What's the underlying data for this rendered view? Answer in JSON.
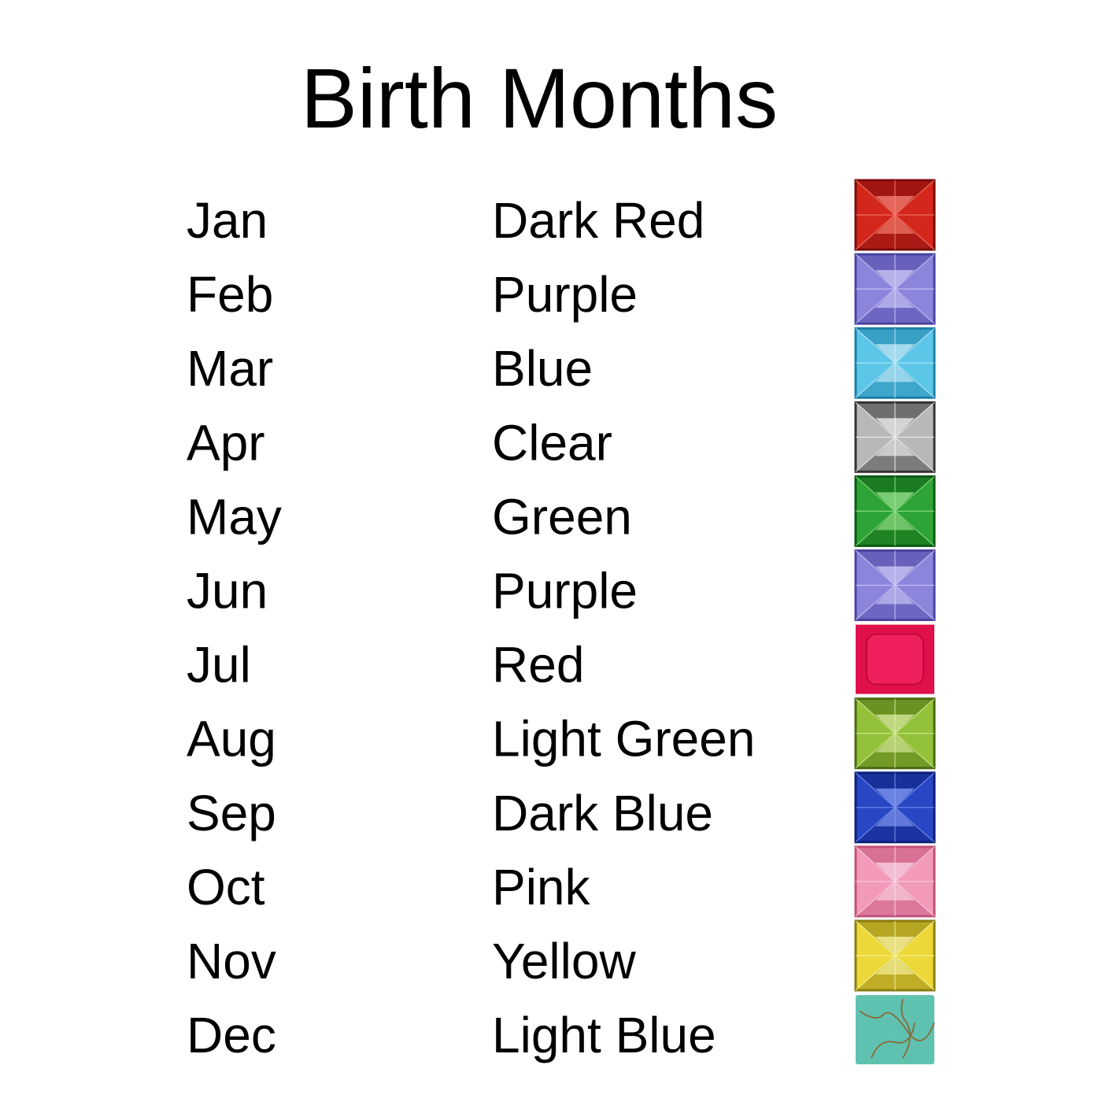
{
  "header": {
    "title": "Birth Months"
  },
  "table": {
    "rows": [
      [
        "Jan",
        "Dark Red"
      ],
      [
        "Feb",
        "Purple"
      ],
      [
        "Mar",
        "Blue"
      ],
      [
        "Apr",
        "Clear"
      ],
      [
        "May",
        "Green"
      ],
      [
        "Jun",
        "Purple"
      ],
      [
        "Jul",
        "Red"
      ],
      [
        "Aug",
        "Light Green"
      ],
      [
        "Sep",
        "Dark Blue"
      ],
      [
        "Oct",
        "Pink"
      ],
      [
        "Nov",
        "Yellow"
      ],
      [
        "Dec",
        "Light Blue"
      ]
    ]
  }
}
